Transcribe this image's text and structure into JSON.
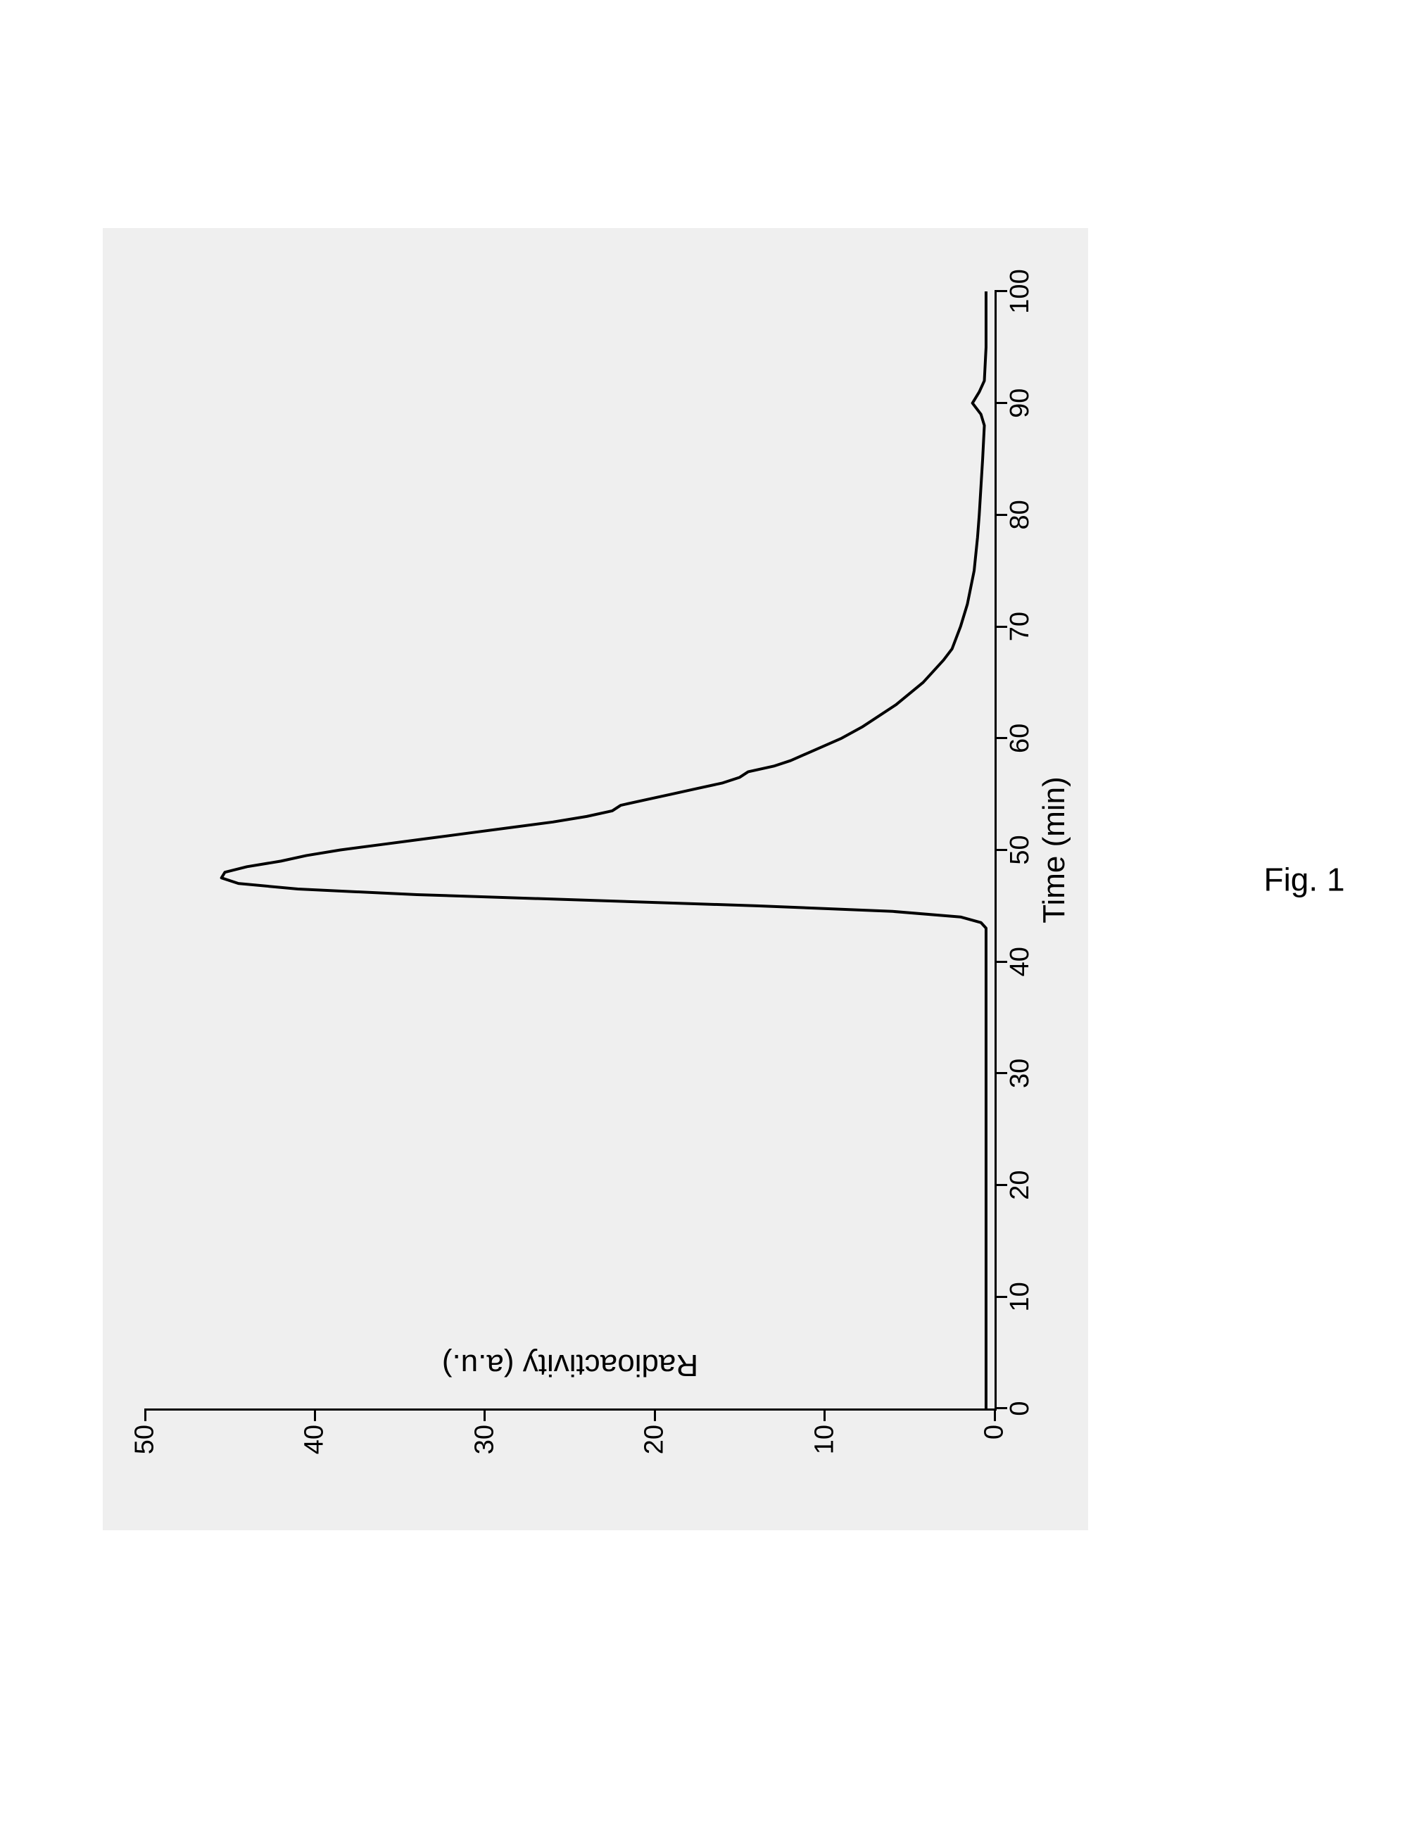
{
  "figure": {
    "caption": "Fig. 1",
    "type": "line",
    "background_color": "#efefef",
    "axis_color": "#000000",
    "line_color": "#000000",
    "line_width": 4,
    "x": {
      "label": "Time (min)",
      "min": 0,
      "max": 100,
      "ticks": [
        0,
        10,
        20,
        30,
        40,
        50,
        60,
        70,
        80,
        90,
        100
      ],
      "label_fontsize": 44,
      "tick_fontsize": 38
    },
    "y": {
      "label": "Radioactivity (a.u.)",
      "min": 0,
      "max": 50,
      "ticks": [
        0,
        10,
        20,
        30,
        40,
        50
      ],
      "label_fontsize": 44,
      "tick_fontsize": 38
    },
    "series": [
      {
        "x": 0,
        "y": 0.5
      },
      {
        "x": 10,
        "y": 0.5
      },
      {
        "x": 20,
        "y": 0.5
      },
      {
        "x": 30,
        "y": 0.5
      },
      {
        "x": 40,
        "y": 0.5
      },
      {
        "x": 42,
        "y": 0.5
      },
      {
        "x": 43,
        "y": 0.5
      },
      {
        "x": 43.5,
        "y": 0.8
      },
      {
        "x": 44,
        "y": 2.0
      },
      {
        "x": 44.5,
        "y": 6.0
      },
      {
        "x": 45,
        "y": 14.0
      },
      {
        "x": 45.5,
        "y": 24.0
      },
      {
        "x": 46,
        "y": 34.0
      },
      {
        "x": 46.5,
        "y": 41.0
      },
      {
        "x": 47,
        "y": 44.5
      },
      {
        "x": 47.5,
        "y": 45.5
      },
      {
        "x": 48,
        "y": 45.3
      },
      {
        "x": 48.5,
        "y": 44.0
      },
      {
        "x": 49,
        "y": 42.0
      },
      {
        "x": 49.5,
        "y": 40.5
      },
      {
        "x": 50,
        "y": 38.5
      },
      {
        "x": 50.5,
        "y": 36.0
      },
      {
        "x": 51,
        "y": 33.5
      },
      {
        "x": 51.5,
        "y": 31.0
      },
      {
        "x": 52,
        "y": 28.5
      },
      {
        "x": 52.5,
        "y": 26.0
      },
      {
        "x": 53,
        "y": 24.0
      },
      {
        "x": 53.5,
        "y": 22.5
      },
      {
        "x": 54,
        "y": 22.0
      },
      {
        "x": 54.5,
        "y": 20.5
      },
      {
        "x": 55,
        "y": 19.0
      },
      {
        "x": 55.5,
        "y": 17.5
      },
      {
        "x": 56,
        "y": 16.0
      },
      {
        "x": 56.5,
        "y": 15.0
      },
      {
        "x": 57,
        "y": 14.5
      },
      {
        "x": 57.5,
        "y": 13.0
      },
      {
        "x": 58,
        "y": 12.0
      },
      {
        "x": 59,
        "y": 10.5
      },
      {
        "x": 60,
        "y": 9.0
      },
      {
        "x": 61,
        "y": 7.8
      },
      {
        "x": 62,
        "y": 6.8
      },
      {
        "x": 63,
        "y": 5.8
      },
      {
        "x": 64,
        "y": 5.0
      },
      {
        "x": 65,
        "y": 4.2
      },
      {
        "x": 66,
        "y": 3.6
      },
      {
        "x": 67,
        "y": 3.0
      },
      {
        "x": 68,
        "y": 2.5
      },
      {
        "x": 70,
        "y": 2.0
      },
      {
        "x": 72,
        "y": 1.6
      },
      {
        "x": 75,
        "y": 1.2
      },
      {
        "x": 78,
        "y": 1.0
      },
      {
        "x": 80,
        "y": 0.9
      },
      {
        "x": 85,
        "y": 0.7
      },
      {
        "x": 88,
        "y": 0.6
      },
      {
        "x": 89,
        "y": 0.8
      },
      {
        "x": 90,
        "y": 1.3
      },
      {
        "x": 91,
        "y": 0.9
      },
      {
        "x": 92,
        "y": 0.6
      },
      {
        "x": 95,
        "y": 0.5
      },
      {
        "x": 100,
        "y": 0.5
      }
    ]
  }
}
